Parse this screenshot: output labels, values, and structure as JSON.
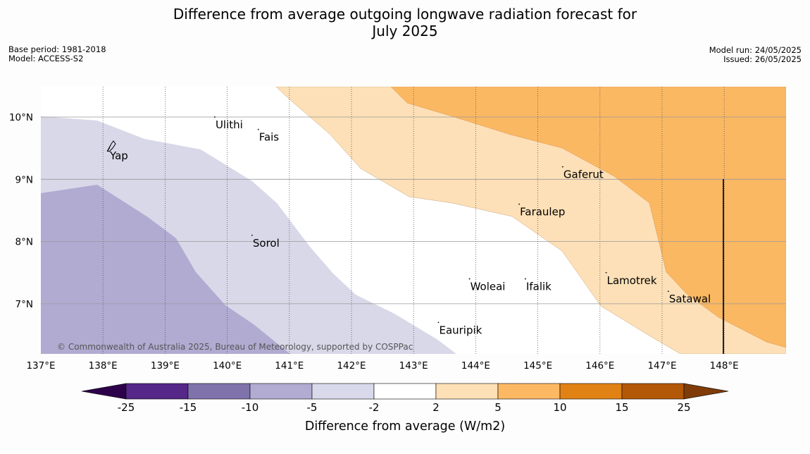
{
  "title": {
    "line1": "Difference from average outgoing longwave radiation forecast for",
    "line2": "July 2025"
  },
  "meta": {
    "base_period": "Base period: 1981-2018",
    "model": "Model: ACCESS-S2",
    "model_run": "Model run: 24/05/2025",
    "issued": "Issued: 26/05/2025"
  },
  "map": {
    "lon_range": [
      137,
      149
    ],
    "lat_range": [
      6.2,
      10.5
    ],
    "lon_labels": [
      "137°E",
      "138°E",
      "139°E",
      "140°E",
      "141°E",
      "142°E",
      "143°E",
      "144°E",
      "145°E",
      "146°E",
      "147°E",
      "148°E"
    ],
    "lat_labels": [
      "10°N",
      "9°N",
      "8°N",
      "7°N"
    ],
    "copyright": "© Commonwealth of Australia 2025, Bureau of Meteorology, supported by COSPPac",
    "places": [
      {
        "name": "Ulithi",
        "lon": 139.8,
        "lat": 10.0
      },
      {
        "name": "Fais",
        "lon": 140.5,
        "lat": 9.8
      },
      {
        "name": "Yap",
        "lon": 138.1,
        "lat": 9.5
      },
      {
        "name": "Sorol",
        "lon": 140.4,
        "lat": 8.1
      },
      {
        "name": "Gaferut",
        "lon": 145.4,
        "lat": 9.2
      },
      {
        "name": "Faraulep",
        "lon": 144.7,
        "lat": 8.6
      },
      {
        "name": "Woleai",
        "lon": 143.9,
        "lat": 7.4
      },
      {
        "name": "Ifalik",
        "lon": 144.8,
        "lat": 7.4
      },
      {
        "name": "Lamotrek",
        "lon": 146.1,
        "lat": 7.5
      },
      {
        "name": "Satawal",
        "lon": 147.1,
        "lat": 7.2
      },
      {
        "name": "Eauripik",
        "lon": 143.4,
        "lat": 6.7
      }
    ],
    "colors": {
      "neg_10_15": "#b1abd2",
      "neg_5_10": "#d8d8e9",
      "pos_2_5": "#fde0b7",
      "pos_5_10": "#fbb862"
    }
  },
  "legend": {
    "title": "Difference from average (W/m2)",
    "tick_labels": [
      "-25",
      "-15",
      "-10",
      "-5",
      "-2",
      "2",
      "5",
      "10",
      "15",
      "25"
    ],
    "colors": [
      "#2d004b",
      "#542788",
      "#8073ac",
      "#b2abd2",
      "#d8daeb",
      "#ffffff",
      "#fee0b6",
      "#fdb863",
      "#e08214",
      "#b35806",
      "#7f3b08"
    ]
  }
}
